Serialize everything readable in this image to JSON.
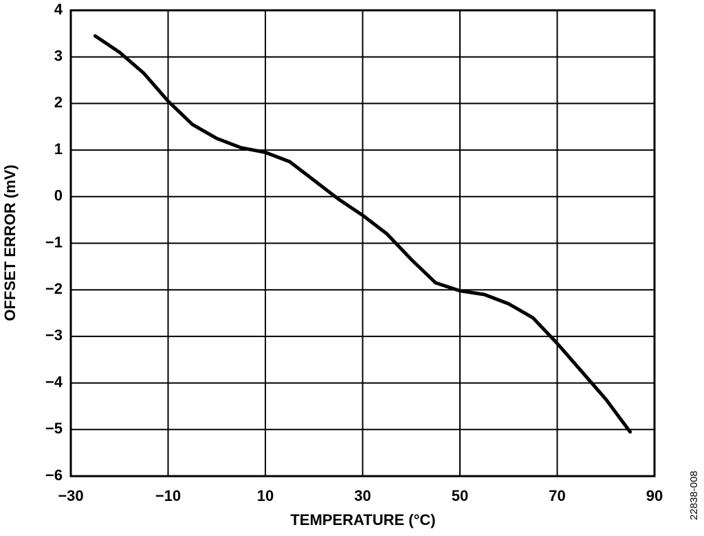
{
  "chart_data": {
    "type": "line",
    "x_label": "TEMPERATURE (°C)",
    "y_label": "OFFSET ERROR (mV)",
    "figure_id": "22838-008",
    "x": [
      -25,
      -20,
      -15,
      -10,
      -5,
      0,
      5,
      10,
      15,
      20,
      25,
      30,
      35,
      40,
      45,
      50,
      55,
      60,
      65,
      70,
      75,
      80,
      85
    ],
    "series": [
      {
        "color": "#000000",
        "values": [
          3.45,
          3.1,
          2.65,
          2.05,
          1.55,
          1.25,
          1.05,
          0.95,
          0.75,
          0.35,
          -0.05,
          -0.4,
          -0.8,
          -1.35,
          -1.85,
          -2.02,
          -2.1,
          -2.3,
          -2.6,
          -3.15,
          -3.75,
          -4.35,
          -5.05
        ]
      }
    ],
    "xlim": [
      -30,
      90
    ],
    "xticks": [
      {
        "value": -30,
        "label": "−30"
      },
      {
        "value": -10,
        "label": "−10"
      },
      10,
      30,
      50,
      70,
      90
    ],
    "ylim": [
      -6,
      4
    ],
    "yticks": [
      4,
      3,
      2,
      1,
      0,
      {
        "value": -1,
        "label": "−1"
      },
      {
        "value": -2,
        "label": "−2"
      },
      {
        "value": -3,
        "label": "−3"
      },
      {
        "value": -4,
        "label": "−4"
      },
      {
        "value": -5,
        "label": "−5"
      },
      {
        "value": -6,
        "label": "−6"
      }
    ],
    "grid": true
  }
}
